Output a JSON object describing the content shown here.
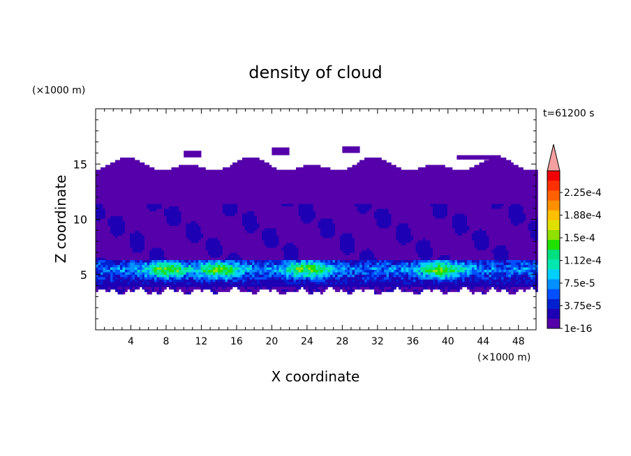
{
  "chart_data": {
    "type": "heatmap",
    "title": "density of cloud",
    "xlabel": "X coordinate",
    "ylabel": "Z coordinate",
    "x_unit": "(×1000 m)",
    "y_unit": "(×1000 m)",
    "time_label": "t=61200 s",
    "xlim": [
      0,
      50
    ],
    "ylim": [
      0,
      20
    ],
    "x_ticks": [
      4,
      8,
      12,
      16,
      20,
      24,
      28,
      32,
      36,
      40,
      44,
      48
    ],
    "x_tick_labels": [
      "4",
      "8",
      "12",
      "16",
      "20",
      "24",
      "28",
      "32",
      "36",
      "40",
      "44",
      "48"
    ],
    "y_ticks": [
      5,
      10,
      15
    ],
    "y_tick_labels": [
      "5",
      "10",
      "15"
    ],
    "colorbar": {
      "levels": [
        "1e-16",
        "3.75e-5",
        "7.5e-5",
        "1.12e-4",
        "1.5e-4",
        "1.88e-4",
        "2.25e-4"
      ],
      "colors": [
        "#5500aa",
        "#1e00b4",
        "#0020d0",
        "#0050ff",
        "#0090ff",
        "#00d0ff",
        "#00e8b0",
        "#00e080",
        "#20e000",
        "#90e000",
        "#e0e000",
        "#ffc000",
        "#ff9000",
        "#ff6000",
        "#ff3000",
        "#f00000"
      ],
      "extend_color": "#f4a0a0"
    },
    "field": {
      "cloud_base_km": 3.6,
      "cloud_top_km": 15.0,
      "dense_layer_km": [
        4.0,
        6.5
      ],
      "peak_value": 0.00015,
      "peak_x_km": [
        8,
        14,
        24,
        39
      ]
    }
  }
}
